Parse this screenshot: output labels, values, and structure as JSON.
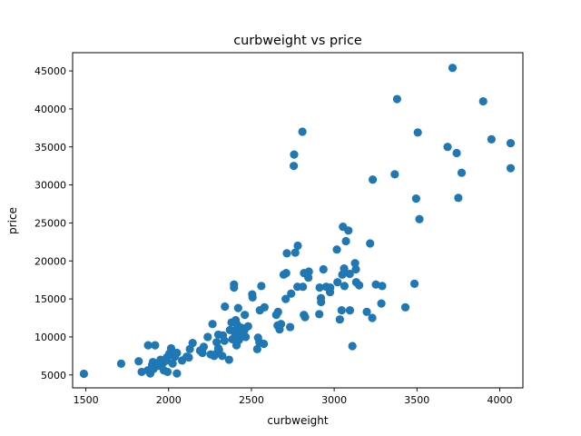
{
  "chart_data": {
    "type": "scatter",
    "title": "curbweight vs price",
    "xlabel": "curbweight",
    "ylabel": "price",
    "xlim": [
      1420,
      4140
    ],
    "ylim": [
      3300,
      47400
    ],
    "xticks": [
      1500,
      2000,
      2500,
      3000,
      3500,
      4000
    ],
    "yticks": [
      5000,
      10000,
      15000,
      20000,
      25000,
      30000,
      35000,
      40000,
      45000
    ],
    "xticklabels": [
      "1500",
      "2000",
      "2500",
      "3000",
      "3500",
      "4000"
    ],
    "yticklabels": [
      "5000",
      "10000",
      "15000",
      "20000",
      "25000",
      "30000",
      "35000",
      "40000",
      "45000"
    ],
    "grid": false,
    "marker_color": "#1f77b4",
    "points": [
      [
        1488,
        5150
      ],
      [
        1713,
        6480
      ],
      [
        1819,
        6800
      ],
      [
        1837,
        5400
      ],
      [
        1874,
        5600
      ],
      [
        1876,
        8900
      ],
      [
        1889,
        5200
      ],
      [
        1900,
        6300
      ],
      [
        1905,
        6700
      ],
      [
        1909,
        5800
      ],
      [
        1918,
        8900
      ],
      [
        1938,
        6200
      ],
      [
        1940,
        6600
      ],
      [
        1951,
        7000
      ],
      [
        1967,
        6600
      ],
      [
        1971,
        5600
      ],
      [
        1989,
        7300
      ],
      [
        1989,
        6900
      ],
      [
        1993,
        5400
      ],
      [
        2004,
        7800
      ],
      [
        2008,
        7600
      ],
      [
        2015,
        8500
      ],
      [
        2024,
        6500
      ],
      [
        2037,
        7400
      ],
      [
        2050,
        5200
      ],
      [
        2050,
        7900
      ],
      [
        2081,
        6900
      ],
      [
        2109,
        7400
      ],
      [
        2122,
        7300
      ],
      [
        2128,
        8400
      ],
      [
        2145,
        9200
      ],
      [
        2190,
        8200
      ],
      [
        2204,
        7900
      ],
      [
        2212,
        8700
      ],
      [
        2236,
        10000
      ],
      [
        2254,
        7700
      ],
      [
        2265,
        11700
      ],
      [
        2275,
        7500
      ],
      [
        2289,
        7800
      ],
      [
        2290,
        9300
      ],
      [
        2300,
        8500
      ],
      [
        2300,
        10300
      ],
      [
        2304,
        8300
      ],
      [
        2324,
        7500
      ],
      [
        2328,
        10200
      ],
      [
        2337,
        9500
      ],
      [
        2340,
        14000
      ],
      [
        2365,
        7000
      ],
      [
        2370,
        10900
      ],
      [
        2380,
        11900
      ],
      [
        2385,
        9700
      ],
      [
        2395,
        16900
      ],
      [
        2395,
        16500
      ],
      [
        2400,
        10800
      ],
      [
        2403,
        10300
      ],
      [
        2405,
        12200
      ],
      [
        2410,
        8900
      ],
      [
        2414,
        11600
      ],
      [
        2420,
        13800
      ],
      [
        2425,
        9600
      ],
      [
        2440,
        11200
      ],
      [
        2443,
        10500
      ],
      [
        2458,
        10900
      ],
      [
        2460,
        12900
      ],
      [
        2465,
        10000
      ],
      [
        2480,
        11400
      ],
      [
        2505,
        15600
      ],
      [
        2507,
        15200
      ],
      [
        2535,
        8400
      ],
      [
        2540,
        9900
      ],
      [
        2548,
        9300
      ],
      [
        2551,
        13500
      ],
      [
        2560,
        16700
      ],
      [
        2575,
        9100
      ],
      [
        2579,
        13900
      ],
      [
        2650,
        12900
      ],
      [
        2658,
        11500
      ],
      [
        2661,
        13300
      ],
      [
        2670,
        11000
      ],
      [
        2679,
        11700
      ],
      [
        2695,
        18200
      ],
      [
        2707,
        15000
      ],
      [
        2710,
        18400
      ],
      [
        2714,
        21000
      ],
      [
        2734,
        11300
      ],
      [
        2740,
        15700
      ],
      [
        2756,
        32500
      ],
      [
        2758,
        34000
      ],
      [
        2765,
        21100
      ],
      [
        2778,
        16600
      ],
      [
        2780,
        22000
      ],
      [
        2808,
        37000
      ],
      [
        2811,
        16600
      ],
      [
        2817,
        12900
      ],
      [
        2818,
        18400
      ],
      [
        2824,
        12600
      ],
      [
        2844,
        17800
      ],
      [
        2847,
        18600
      ],
      [
        2910,
        13000
      ],
      [
        2912,
        16500
      ],
      [
        2920,
        15100
      ],
      [
        2921,
        14600
      ],
      [
        2935,
        18900
      ],
      [
        2952,
        16600
      ],
      [
        2975,
        15900
      ],
      [
        2976,
        16500
      ],
      [
        3016,
        21500
      ],
      [
        3020,
        17200
      ],
      [
        3034,
        12300
      ],
      [
        3045,
        13500
      ],
      [
        3049,
        18200
      ],
      [
        3053,
        24500
      ],
      [
        3060,
        19000
      ],
      [
        3062,
        16700
      ],
      [
        3071,
        22600
      ],
      [
        3086,
        24000
      ],
      [
        3094,
        18300
      ],
      [
        3095,
        13500
      ],
      [
        3110,
        8800
      ],
      [
        3126,
        19700
      ],
      [
        3131,
        18900
      ],
      [
        3133,
        17200
      ],
      [
        3151,
        16800
      ],
      [
        3197,
        13300
      ],
      [
        3217,
        22300
      ],
      [
        3230,
        12500
      ],
      [
        3233,
        30700
      ],
      [
        3252,
        16900
      ],
      [
        3285,
        14400
      ],
      [
        3290,
        16700
      ],
      [
        3366,
        31400
      ],
      [
        3380,
        41300
      ],
      [
        3430,
        13900
      ],
      [
        3485,
        17000
      ],
      [
        3495,
        28200
      ],
      [
        3505,
        36900
      ],
      [
        3515,
        25500
      ],
      [
        3685,
        35000
      ],
      [
        3715,
        45400
      ],
      [
        3740,
        34200
      ],
      [
        3750,
        28300
      ],
      [
        3770,
        31600
      ],
      [
        3900,
        41000
      ],
      [
        3950,
        36000
      ],
      [
        4066,
        35500
      ],
      [
        4066,
        32200
      ]
    ]
  }
}
